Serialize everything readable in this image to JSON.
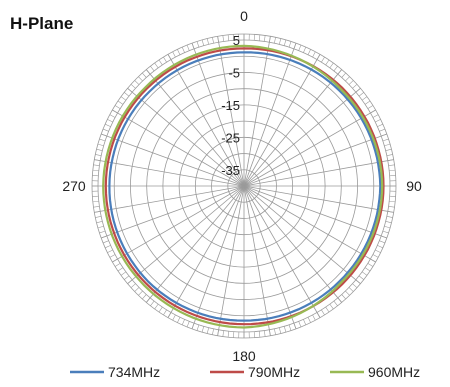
{
  "chart_data": {
    "type": "polar-line",
    "title": "H-Plane",
    "radial_axis": {
      "min": -40,
      "max": 5,
      "ticks": [
        5,
        -5,
        -15,
        -25,
        -35
      ],
      "ring_step": 5
    },
    "angular_axis": {
      "direction": "clockwise",
      "zero_at": "top",
      "spoke_step_deg": 10,
      "labels": [
        {
          "angle": 0,
          "text": "0"
        },
        {
          "angle": 90,
          "text": "90"
        },
        {
          "angle": 180,
          "text": "180"
        },
        {
          "angle": 270,
          "text": "270"
        }
      ]
    },
    "series": [
      {
        "name": "734MHz",
        "color": "#4a7ebb",
        "angles": [
          0,
          45,
          90,
          135,
          180,
          225,
          270,
          315
        ],
        "values": [
          1.2,
          1.6,
          2.0,
          1.6,
          1.5,
          1.7,
          1.5,
          1.2
        ]
      },
      {
        "name": "790MHz",
        "color": "#be4b48",
        "angles": [
          0,
          45,
          90,
          135,
          180,
          225,
          270,
          315
        ],
        "values": [
          2.4,
          2.8,
          3.0,
          2.8,
          2.6,
          2.6,
          2.6,
          2.4
        ]
      },
      {
        "name": "960MHz",
        "color": "#98b954",
        "angles": [
          0,
          45,
          90,
          135,
          180,
          225,
          270,
          315
        ],
        "values": [
          3.2,
          2.2,
          2.6,
          2.2,
          3.6,
          3.4,
          3.4,
          3.0
        ]
      }
    ],
    "legend": {
      "position": "bottom"
    },
    "grid": true
  }
}
